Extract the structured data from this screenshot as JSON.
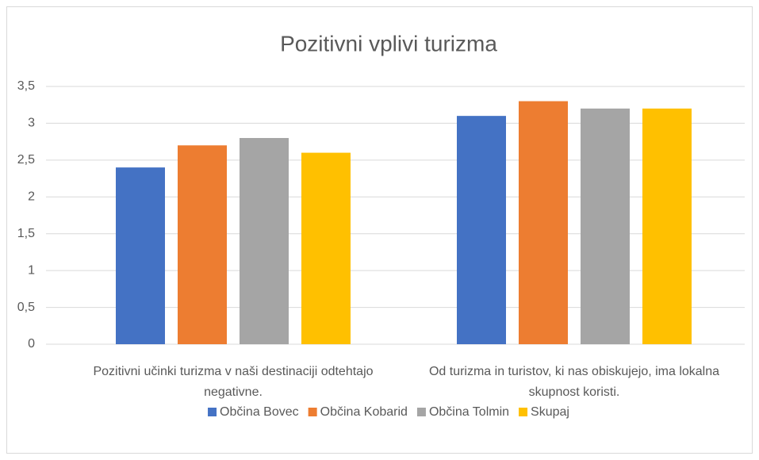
{
  "chart_data": {
    "type": "bar",
    "title": "Pozitivni vplivi turizma",
    "categories": [
      "Pozitivni učinki turizma v naši destinaciji odtehtajo negativne.",
      "Od turizma in turistov, ki nas obiskujejo, ima lokalna skupnost koristi."
    ],
    "series": [
      {
        "name": "Občina Bovec",
        "color": "#4472c4",
        "values": [
          2.4,
          3.1
        ]
      },
      {
        "name": "Občina Kobarid",
        "color": "#ed7d31",
        "values": [
          2.7,
          3.3
        ]
      },
      {
        "name": "Občina Tolmin",
        "color": "#a5a5a5",
        "values": [
          2.8,
          3.2
        ]
      },
      {
        "name": "Skupaj",
        "color": "#ffc000",
        "values": [
          2.6,
          3.2
        ]
      }
    ],
    "ylim": [
      0,
      3.5
    ],
    "yticks": [
      0,
      {
        "value": 0.5,
        "label": "0,5"
      },
      1,
      {
        "value": 1.5,
        "label": "1,5"
      },
      2,
      {
        "value": 2.5,
        "label": "2,5"
      },
      3,
      {
        "value": 3.5,
        "label": "3,5"
      }
    ],
    "grid": true,
    "legend": "bottom"
  }
}
